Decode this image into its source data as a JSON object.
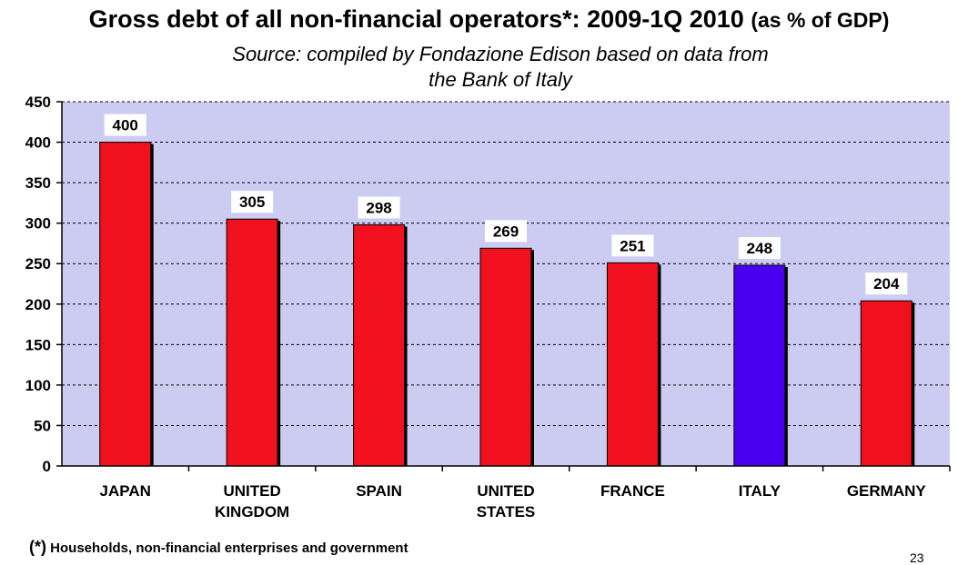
{
  "title": {
    "main": "Gross debt of all non-financial operators*: 2009-1Q 2010",
    "suffix": "(as % of GDP)"
  },
  "subtitle_line1": "Source: compiled by Fondazione Edison based on data from",
  "subtitle_line2": "the Bank of Italy",
  "footnote": {
    "marker": "(*)",
    "text": "Households, non-financial enterprises and government"
  },
  "page_number": "23",
  "colors": {
    "plot_background": "#ccccf2",
    "bar_default": "#f0101e",
    "bar_highlight": "#4a00f0",
    "bar_shadow": "#000000"
  },
  "chart_data": {
    "type": "bar",
    "categories": [
      [
        "JAPAN"
      ],
      [
        "UNITED",
        "KINGDOM"
      ],
      [
        "SPAIN"
      ],
      [
        "UNITED",
        "STATES"
      ],
      [
        "FRANCE"
      ],
      [
        "ITALY"
      ],
      [
        "GERMANY"
      ]
    ],
    "values": [
      400,
      305,
      298,
      269,
      251,
      248,
      204
    ],
    "data_labels": [
      "400",
      "305",
      "298",
      "269",
      "251",
      "248",
      "204"
    ],
    "highlight_index": 5,
    "ylim": [
      0,
      450
    ],
    "yticks": [
      0,
      50,
      100,
      150,
      200,
      250,
      300,
      350,
      400,
      450
    ],
    "grid": true,
    "legend": "none"
  }
}
